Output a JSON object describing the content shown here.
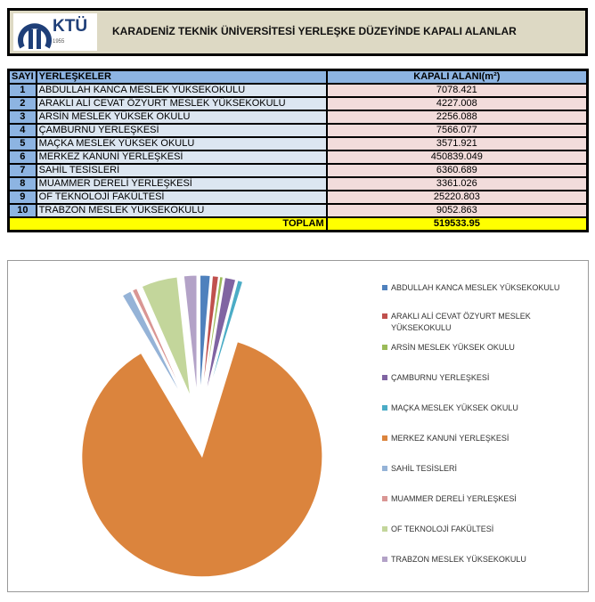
{
  "header": {
    "logo_text": "KTÜ",
    "logo_year": "1955",
    "title": "KARADENİZ TEKNİK ÜNİVERSİTESİ YERLEŞKE DÜZEYİNDE KAPALI ALANLAR"
  },
  "table": {
    "columns": [
      "SAYI",
      "YERLEŞKELER",
      "KAPALI ALANI(m²)"
    ],
    "rows": [
      {
        "no": "1",
        "name": "ABDULLAH KANCA MESLEK YÜKSEKOKULU",
        "area": "7078.421"
      },
      {
        "no": "2",
        "name": "ARAKLI ALİ CEVAT ÖZYURT MESLEK YÜKSEKOKULU",
        "area": "4227.008"
      },
      {
        "no": "3",
        "name": "ARSİN MESLEK YÜKSEK OKULU",
        "area": "2256.088"
      },
      {
        "no": "4",
        "name": "ÇAMBURNU YERLEŞKESİ",
        "area": "7566.077"
      },
      {
        "no": "5",
        "name": "MAÇKA MESLEK YÜKSEK OKULU",
        "area": "3571.921"
      },
      {
        "no": "6",
        "name": "MERKEZ KANUNİ YERLEŞKESİ",
        "area": "450839.049"
      },
      {
        "no": "7",
        "name": "SAHİL TESİSLERİ",
        "area": "6360.689"
      },
      {
        "no": "8",
        "name": "MUAMMER DERELİ YERLEŞKESİ",
        "area": "3361.026"
      },
      {
        "no": "9",
        "name": "OF TEKNOLOJİ FAKÜLTESİ",
        "area": "25220.803"
      },
      {
        "no": "10",
        "name": "TRABZON MESLEK YÜKSEKOKULU",
        "area": "9052.863"
      }
    ],
    "total_label": "TOPLAM",
    "total": "519533.95"
  },
  "chart_data": {
    "type": "pie",
    "exploded": true,
    "legend": "right",
    "categories": [
      "ABDULLAH KANCA MESLEK YÜKSEKOKULU",
      "ARAKLI ALİ CEVAT ÖZYURT MESLEK YÜKSEKOKULU",
      "ARSİN MESLEK YÜKSEK OKULU",
      "ÇAMBURNU YERLEŞKESİ",
      "MAÇKA MESLEK YÜKSEK OKULU",
      "MERKEZ KANUNİ YERLEŞKESİ",
      "SAHİL TESİSLERİ",
      "MUAMMER DERELİ YERLEŞKESİ",
      "OF TEKNOLOJİ FAKÜLTESİ",
      "TRABZON MESLEK YÜKSEKOKULU"
    ],
    "values": [
      7078.421,
      4227.008,
      2256.088,
      7566.077,
      3571.921,
      450839.049,
      6360.689,
      3361.026,
      25220.803,
      9052.863
    ],
    "colors": [
      "#4f81bd",
      "#c0504d",
      "#9bbb59",
      "#8064a2",
      "#4bacc6",
      "#db843d",
      "#95b3d7",
      "#d99694",
      "#c3d69b",
      "#b3a2c7"
    ]
  }
}
